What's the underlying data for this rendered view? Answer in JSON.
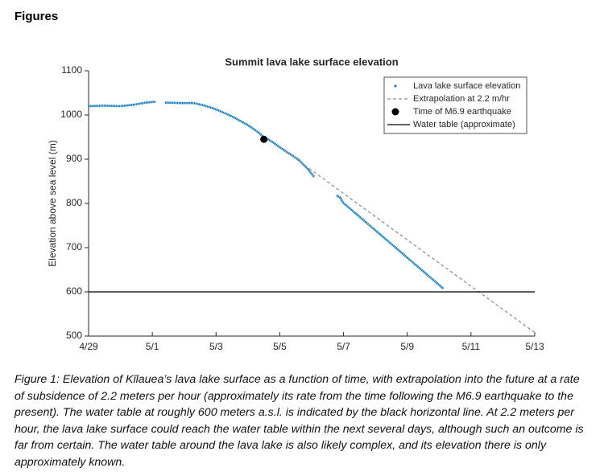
{
  "header": {
    "title": "Figures"
  },
  "chart_data": {
    "type": "line",
    "title": "Summit lava lake surface elevation",
    "ylabel": "Elevation above sea level (m)",
    "xlim": [
      0,
      14
    ],
    "xticks": [
      {
        "value": 0,
        "label": "4/29"
      },
      {
        "value": 2,
        "label": "5/1"
      },
      {
        "value": 4,
        "label": "5/3"
      },
      {
        "value": 6,
        "label": "5/5"
      },
      {
        "value": 8,
        "label": "5/7"
      },
      {
        "value": 10,
        "label": "5/9"
      },
      {
        "value": 12,
        "label": "5/11"
      },
      {
        "value": 14,
        "label": "5/13"
      }
    ],
    "ylim": [
      500,
      1100
    ],
    "yticks": [
      500,
      600,
      700,
      800,
      900,
      1000,
      1100
    ],
    "legend": "upper right",
    "series": [
      {
        "name": "Lava lake surface elevation",
        "color": "#0072bd",
        "style": "points",
        "x": [
          0,
          0.5,
          1,
          1.4,
          1.8,
          2.1,
          2.2,
          2.4,
          2.9,
          3.3,
          3.6,
          3.92,
          4.25,
          4.55,
          4.8,
          5.05,
          5.3,
          5.5,
          5.75,
          5.94,
          6.25,
          6.57,
          6.85,
          7.08,
          7.4,
          7.78,
          7.9,
          7.98,
          11.14
        ],
        "values": [
          1020,
          1021,
          1020,
          1023,
          1028,
          1030,
          null,
          1028,
          1027,
          1027,
          1022,
          1015,
          1005,
          995,
          985,
          975,
          962,
          950,
          940,
          930,
          915,
          900,
          880,
          860,
          null,
          818,
          813,
          802,
          607
        ]
      },
      {
        "name": "Extrapolation at 2.2 m/hr",
        "color": "#8c8c8c",
        "style": "dashed",
        "x": [
          6.2,
          14
        ],
        "values": [
          917,
          508
        ]
      },
      {
        "name": "Time of M6.9 earthquake",
        "color": "#000000",
        "style": "marker",
        "x": [
          5.5
        ],
        "values": [
          945
        ]
      },
      {
        "name": "Water table (approximate)",
        "color": "#000000",
        "style": "solid",
        "x": [
          0,
          14
        ],
        "values": [
          600,
          600
        ]
      }
    ]
  },
  "caption": "Figure 1: Elevation of Kīlauea’s lava lake surface as a function of time, with extrapolation into the future at a rate of subsidence of 2.2 meters per hour (approximately its rate from the time following the M6.9 earthquake to the present). The water table at roughly 600 meters a.s.l. is indicated by the black horizontal line. At 2.2 meters per hour, the lava lake surface could reach the water table within the next several days, although such an outcome is far from certain. The water table around the lava lake is also likely complex, and its elevation there is only approximately known."
}
